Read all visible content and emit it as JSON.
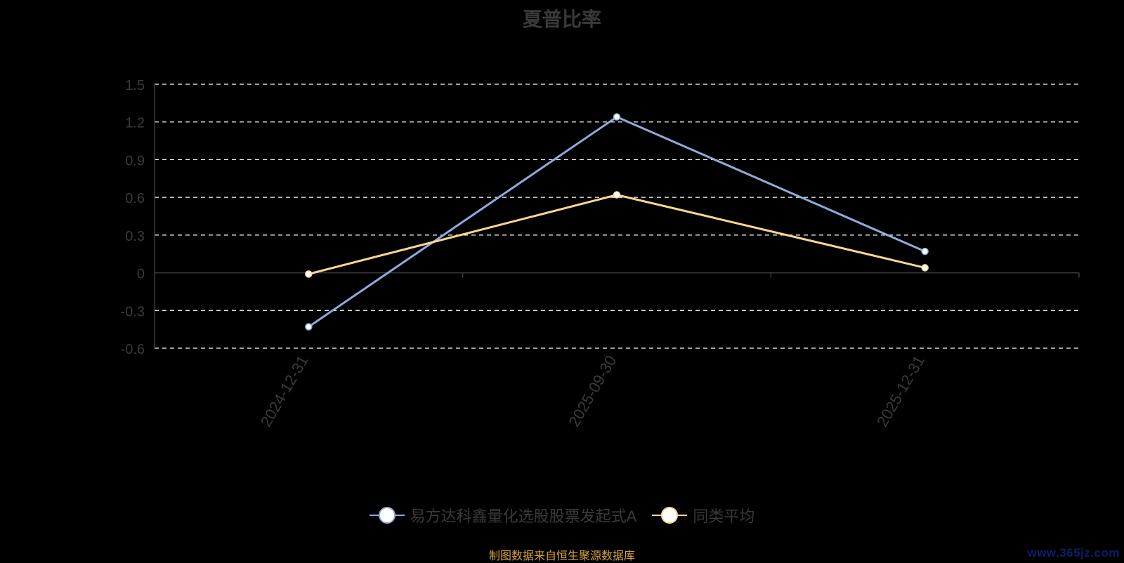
{
  "chart_data": {
    "type": "line",
    "title": "夏普比率",
    "categories": [
      "2024-12-31",
      "2025-09-30",
      "2025-12-31"
    ],
    "ylim": [
      -0.6,
      1.5
    ],
    "yticks": [
      "1.5",
      "1.2",
      "0.9",
      "0.6",
      "0.3",
      "0",
      "-0.3",
      "-0.6"
    ],
    "grid": true,
    "legend_position": "bottom",
    "series": [
      {
        "name": "易方达科鑫量化选股股票发起式A",
        "values": [
          -0.43,
          1.24,
          0.17
        ],
        "color": "#8faadc"
      },
      {
        "name": "同类平均",
        "values": [
          -0.01,
          0.62,
          0.04
        ],
        "color": "#ffd591"
      }
    ]
  },
  "footer": {
    "source": "制图数据来自恒生聚源数据库",
    "watermark": "www.365jz.com"
  }
}
